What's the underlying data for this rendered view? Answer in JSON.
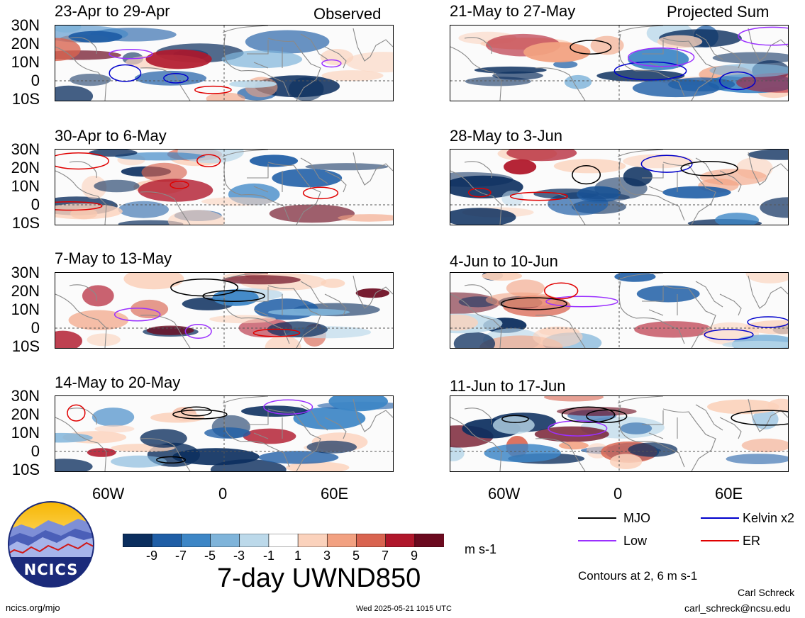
{
  "headers": {
    "observed": "Observed",
    "projected": "Projected Sum"
  },
  "panels": [
    {
      "id": "obs-1",
      "title": "23-Apr to 29-Apr"
    },
    {
      "id": "obs-2",
      "title": "30-Apr to 6-May"
    },
    {
      "id": "obs-3",
      "title": "7-May to 13-May"
    },
    {
      "id": "obs-4",
      "title": "14-May to 20-May"
    },
    {
      "id": "proj-1",
      "title": "21-May to 27-May"
    },
    {
      "id": "proj-2",
      "title": "28-May to 3-Jun"
    },
    {
      "id": "proj-3",
      "title": "4-Jun to 10-Jun"
    },
    {
      "id": "proj-4",
      "title": "11-Jun to 17-Jun"
    }
  ],
  "lat_labels": [
    "30N",
    "20N",
    "10N",
    "0",
    "10S"
  ],
  "lon_labels": [
    "60W",
    "0",
    "60E"
  ],
  "colorbar": {
    "labels": [
      "-9",
      "-7",
      "-5",
      "-3",
      "-1",
      "1",
      "3",
      "5",
      "7",
      "9"
    ],
    "colors": [
      "#0b2e5e",
      "#1f5ea6",
      "#3d86c6",
      "#7fb4da",
      "#bcd9ea",
      "#ffffff",
      "#fbd2bc",
      "#f2a181",
      "#d96450",
      "#b0172b",
      "#6b0a1f"
    ],
    "units": "m s-1"
  },
  "chart_title": "7-day UWND850",
  "legend": {
    "items": [
      {
        "label": "MJO",
        "color": "#000000"
      },
      {
        "label": "Low",
        "color": "#9b30ff"
      },
      {
        "label": "Kelvin x2",
        "color": "#0000cc"
      },
      {
        "label": "ER",
        "color": "#e00000"
      }
    ],
    "contours_note": "Contours at 2, 6 m s-1"
  },
  "logo_text": "NCICS",
  "footer": {
    "url": "ncics.org/mjo",
    "timestamp": "Wed 2025-05-21 1015 UTC",
    "author": "Carl Schreck",
    "email": "carl_schreck@ncsu.edu"
  }
}
